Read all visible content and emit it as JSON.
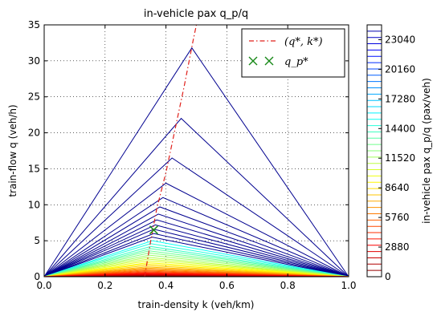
{
  "chart_data": {
    "type": "line",
    "title": "in-vehicle pax q_p/q",
    "xlabel": "train-density k (veh/km)",
    "ylabel": "train-flow q (veh/h)",
    "xlim": [
      0.0,
      1.0
    ],
    "ylim": [
      0,
      35
    ],
    "x_ticks": [
      "0.0",
      "0.2",
      "0.4",
      "0.6",
      "0.8",
      "1.0"
    ],
    "y_ticks": [
      "0",
      "5",
      "10",
      "15",
      "20",
      "25",
      "30",
      "35"
    ],
    "grid": true,
    "contour_peaks": [
      {
        "k": 0.485,
        "q": 31.8
      },
      {
        "k": 0.45,
        "q": 22.0
      },
      {
        "k": 0.42,
        "q": 16.5
      },
      {
        "k": 0.4,
        "q": 13.0
      },
      {
        "k": 0.39,
        "q": 11.0
      },
      {
        "k": 0.38,
        "q": 9.7
      },
      {
        "k": 0.375,
        "q": 8.7
      },
      {
        "k": 0.37,
        "q": 7.9
      },
      {
        "k": 0.365,
        "q": 7.2
      },
      {
        "k": 0.36,
        "q": 6.6
      },
      {
        "k": 0.36,
        "q": 6.0
      },
      {
        "k": 0.355,
        "q": 5.5
      },
      {
        "k": 0.355,
        "q": 5.0
      },
      {
        "k": 0.35,
        "q": 4.6
      },
      {
        "k": 0.35,
        "q": 4.2
      },
      {
        "k": 0.35,
        "q": 3.9
      },
      {
        "k": 0.345,
        "q": 3.6
      },
      {
        "k": 0.345,
        "q": 3.3
      },
      {
        "k": 0.345,
        "q": 3.0
      },
      {
        "k": 0.34,
        "q": 2.7
      },
      {
        "k": 0.34,
        "q": 2.45
      },
      {
        "k": 0.34,
        "q": 2.2
      },
      {
        "k": 0.34,
        "q": 1.95
      },
      {
        "k": 0.335,
        "q": 1.75
      },
      {
        "k": 0.335,
        "q": 1.55
      },
      {
        "k": 0.335,
        "q": 1.35
      },
      {
        "k": 0.335,
        "q": 1.2
      },
      {
        "k": 0.33,
        "q": 1.05
      },
      {
        "k": 0.33,
        "q": 0.9
      },
      {
        "k": 0.33,
        "q": 0.78
      },
      {
        "k": 0.33,
        "q": 0.66
      },
      {
        "k": 0.33,
        "q": 0.55
      },
      {
        "k": 0.33,
        "q": 0.45
      },
      {
        "k": 0.33,
        "q": 0.36
      },
      {
        "k": 0.33,
        "q": 0.28
      },
      {
        "k": 0.33,
        "q": 0.21
      },
      {
        "k": 0.33,
        "q": 0.15
      },
      {
        "k": 0.33,
        "q": 0.1
      },
      {
        "k": 0.33,
        "q": 0.06
      }
    ],
    "critical_line": {
      "name": "(q*, k*)",
      "color": "#e0201b",
      "k": [
        0.33,
        0.35,
        0.37,
        0.4,
        0.43,
        0.46,
        0.49,
        0.5
      ],
      "q": [
        0.0,
        5.0,
        9.5,
        14.5,
        20.5,
        26.5,
        33.0,
        35.0
      ]
    },
    "optimum_point": {
      "name": "q_p*",
      "k": 0.36,
      "q": 6.5,
      "color": "#1a8a1a"
    },
    "legend": {
      "position": "top-right",
      "entries": [
        "(q*, k*)",
        "q_p*"
      ]
    },
    "colorbar": {
      "label": "in-vehicle pax q_p/q (pax/veh)",
      "min": 0,
      "max": 24480,
      "tick_values": [
        0,
        2880,
        5760,
        8640,
        11520,
        14400,
        17280,
        20160,
        23040
      ],
      "tick_labels": [
        "0",
        "2880",
        "5760",
        "8640",
        "11520",
        "14400",
        "17280",
        "20160",
        "23040"
      ],
      "levels": 40
    }
  }
}
